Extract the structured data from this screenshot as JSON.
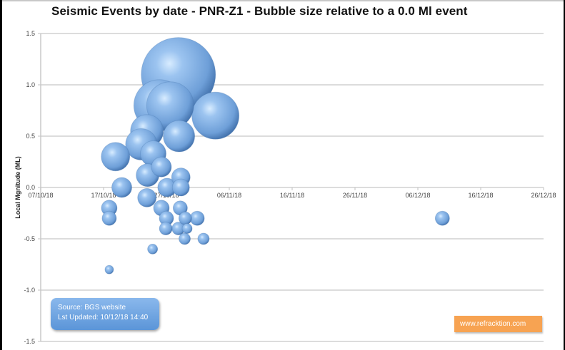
{
  "chart_data": {
    "type": "scatter",
    "subtype": "bubble",
    "title": "Seismic Events by date - PNR-Z1 - Bubble size relative to a 0.0 Ml event",
    "xlabel": "",
    "ylabel": "Local Mgnitude (ML)",
    "ylim": [
      -1.5,
      1.5
    ],
    "yticks": [
      "1.5",
      "1.0",
      "0.5",
      "0.0",
      "-0.5",
      "-1.0",
      "-1.5"
    ],
    "xlim": [
      "07/10/18",
      "26/12/18"
    ],
    "xticks": [
      "07/10/18",
      "17/10/18",
      "27/10/18",
      "06/11/18",
      "16/11/18",
      "26/11/18",
      "06/12/18",
      "16/12/18",
      "26/12/18"
    ],
    "grid": "horizontal",
    "legend": "none",
    "bubble_color": "#7aa9e0",
    "points": [
      {
        "date": "28/10/18",
        "day": 21.9,
        "ml": 1.1,
        "r": 52
      },
      {
        "date": "27/10/18",
        "day": 20.6,
        "ml": 0.8,
        "r": 33
      },
      {
        "date": "26/10/18",
        "day": 18.9,
        "ml": 0.8,
        "r": 36
      },
      {
        "date": "03/11/18",
        "day": 27.8,
        "ml": 0.7,
        "r": 33
      },
      {
        "date": "28/10/18",
        "day": 22.0,
        "ml": 0.5,
        "r": 22
      },
      {
        "date": "24/10/18",
        "day": 16.9,
        "ml": 0.55,
        "r": 23
      },
      {
        "date": "23/10/18",
        "day": 16.0,
        "ml": 0.42,
        "r": 22
      },
      {
        "date": "19/10/18",
        "day": 11.9,
        "ml": 0.3,
        "r": 20
      },
      {
        "date": "25/10/18",
        "day": 17.9,
        "ml": 0.33,
        "r": 18
      },
      {
        "date": "26/10/18",
        "day": 19.2,
        "ml": 0.2,
        "r": 14
      },
      {
        "date": "24/10/18",
        "day": 17.0,
        "ml": 0.12,
        "r": 16
      },
      {
        "date": "29/10/18",
        "day": 22.3,
        "ml": 0.1,
        "r": 13
      },
      {
        "date": "20/10/18",
        "day": 12.9,
        "ml": 0.0,
        "r": 14
      },
      {
        "date": "27/10/18",
        "day": 20.1,
        "ml": 0.0,
        "r": 13
      },
      {
        "date": "29/10/18",
        "day": 22.3,
        "ml": 0.0,
        "r": 12
      },
      {
        "date": "24/10/18",
        "day": 16.9,
        "ml": -0.1,
        "r": 13
      },
      {
        "date": "18/10/18",
        "day": 10.9,
        "ml": -0.2,
        "r": 11
      },
      {
        "date": "18/10/18",
        "day": 10.9,
        "ml": -0.3,
        "r": 10
      },
      {
        "date": "26/10/18",
        "day": 19.2,
        "ml": -0.2,
        "r": 11
      },
      {
        "date": "27/10/18",
        "day": 20.0,
        "ml": -0.3,
        "r": 10
      },
      {
        "date": "29/10/18",
        "day": 22.2,
        "ml": -0.2,
        "r": 10
      },
      {
        "date": "30/10/18",
        "day": 23.0,
        "ml": -0.3,
        "r": 9
      },
      {
        "date": "01/11/18",
        "day": 24.9,
        "ml": -0.3,
        "r": 10
      },
      {
        "date": "27/10/18",
        "day": 19.9,
        "ml": -0.4,
        "r": 9
      },
      {
        "date": "29/10/18",
        "day": 21.9,
        "ml": -0.4,
        "r": 9
      },
      {
        "date": "30/10/18",
        "day": 23.3,
        "ml": -0.4,
        "r": 7
      },
      {
        "date": "30/10/18",
        "day": 22.9,
        "ml": -0.5,
        "r": 8
      },
      {
        "date": "02/11/18",
        "day": 25.9,
        "ml": -0.5,
        "r": 8
      },
      {
        "date": "25/10/18",
        "day": 17.8,
        "ml": -0.6,
        "r": 7
      },
      {
        "date": "18/10/18",
        "day": 10.9,
        "ml": -0.8,
        "r": 6
      },
      {
        "date": "10/12/18",
        "day": 63.9,
        "ml": -0.3,
        "r": 10
      }
    ]
  },
  "annotations": {
    "source_line1": "Source: BGS website",
    "source_line2": "Lst Updated: 10/12/18 14:40",
    "brand": "www.refracktion.com",
    "brand_color": "#f7a352",
    "source_color": "#6ea3e2"
  }
}
